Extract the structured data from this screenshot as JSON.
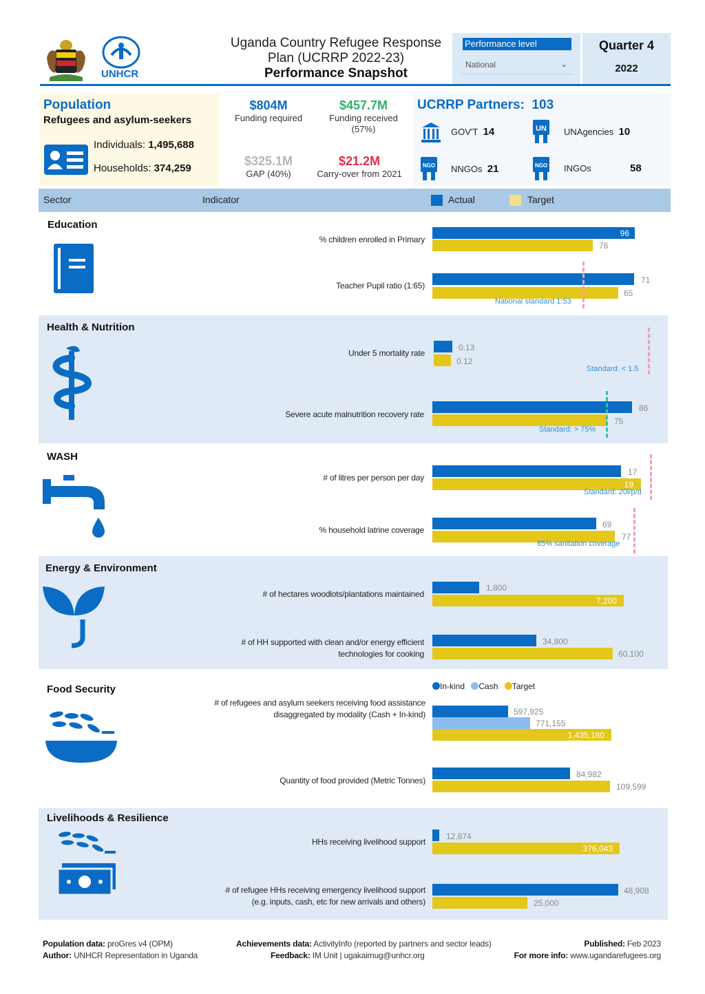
{
  "header": {
    "title_line1": "Uganda Country Refugee Response",
    "title_line2": "Plan (UCRRP 2022-23)",
    "subtitle": "Performance Snapshot",
    "logo_text": "UNHCR",
    "performance_label": "Performance level",
    "level_value": "National",
    "quarter": "Quarter 4",
    "year": "2022"
  },
  "population": {
    "title": "Population",
    "subtitle": "Refugees and asylum-seekers",
    "individuals_label": "Individuals:",
    "individuals_value": "1,495,688",
    "households_label": "Households:",
    "households_value": "374,259"
  },
  "funding": {
    "required_value": "$804M",
    "required_label": "Funding required",
    "received_value": "$457.7M",
    "received_label": "Funding received",
    "received_pct": "(57%)",
    "gap_value": "$325.1M",
    "gap_label": "GAP (40%)",
    "carry_value": "$21.2M",
    "carry_label": "Carry-over from 2021",
    "colors": {
      "required": "#0a6cc4",
      "received": "#2fb36a",
      "gap": "#b5b5b5",
      "carry": "#e0304a"
    }
  },
  "partners": {
    "title": "UCRRP Partners:",
    "total": "103",
    "items": [
      {
        "icon": "government-building-icon",
        "label": "GOV'T",
        "value": "14"
      },
      {
        "icon": "un-agency-icon",
        "label": "UNAgencies",
        "value": "10"
      },
      {
        "icon": "nngo-icon",
        "label": "NNGOs",
        "value": "21"
      },
      {
        "icon": "ingo-icon",
        "label": "INGOs",
        "value": "58"
      }
    ],
    "icon_texts": {
      "un": "UN",
      "nngo": "NGO",
      "ingo": "NGO"
    }
  },
  "table_header": {
    "sector": "Sector",
    "indicator": "Indicator",
    "actual": "Actual",
    "target": "Target"
  },
  "sections": {
    "education": {
      "title": "Education",
      "ind1": {
        "label": "% children enrolled in Primary",
        "actual": 96,
        "target": 76,
        "actual_text": "96",
        "target_text": "76"
      },
      "ind2": {
        "label": "Teacher Pupil ratio (1:65)",
        "actual": 71,
        "target": 65,
        "actual_text": "71",
        "target_text": "65",
        "standard": "National standard 1:53"
      }
    },
    "health": {
      "title": "Health & Nutrition",
      "ind1": {
        "label": "Under 5 mortality rate",
        "actual": 0.13,
        "target": 0.12,
        "actual_text": "0.13",
        "target_text": "0.12",
        "standard": "Standard: < 1.5"
      },
      "ind2": {
        "label": "Severe acute malnutrition recovery rate",
        "actual": 86,
        "target": 75,
        "actual_text": "86",
        "target_text": "75",
        "standard": "Standard: > 75%"
      }
    },
    "wash": {
      "title": "WASH",
      "ind1": {
        "label": "# of litres per person per day",
        "actual": 17,
        "target": 19,
        "actual_text": "17",
        "target_text": "19",
        "standard": "Standard: 20l/p/d"
      },
      "ind2": {
        "label": "% household latrine coverage",
        "actual": 69,
        "target": 77,
        "actual_text": "69",
        "target_text": "77",
        "standard": "85% sanitation coverage"
      }
    },
    "energy": {
      "title": "Energy & Environment",
      "ind1": {
        "label": "# of hectares woodlots/plantations maintained",
        "actual": 1800,
        "target": 7200,
        "actual_text": "1,800",
        "target_text": "7,200"
      },
      "ind2": {
        "label_line1": "# of HH supported with clean and/or energy efficient",
        "label_line2": "technologies for cooking",
        "actual": 34800,
        "target": 60100,
        "actual_text": "34,800",
        "target_text": "60,100"
      }
    },
    "food": {
      "title": "Food Security",
      "legend": {
        "inkind": "In-kind",
        "cash": "Cash",
        "target": "Target"
      },
      "ind1": {
        "label_line1": "# of refugees and asylum seekers receiving food assistance",
        "label_line2": "disaggregated by modality (Cash + In-kind)",
        "inkind": 597925,
        "cash": 771155,
        "target": 1435180,
        "inkind_text": "597,925",
        "cash_text": "771,155",
        "target_text": "1,435,180"
      },
      "ind2": {
        "label": "Quantity of food provided (Metric Tonnes)",
        "actual": 84982,
        "target": 109599,
        "actual_text": "84,982",
        "target_text": "109,599"
      }
    },
    "livelihoods": {
      "title": "Livelihoods & Resilience",
      "ind1": {
        "label": "HHs receiving livelihood support",
        "actual": 12874,
        "target": 376043,
        "actual_text": "12,874",
        "target_text": "376,043"
      },
      "ind2": {
        "label_line1": "# of refugee HHs receiving emergency livelihood support",
        "label_line2": "(e.g. inputs, cash, etc for new arrivals and others)",
        "actual": 48908,
        "target": 25000,
        "actual_text": "48,908",
        "target_text": "25,000"
      }
    }
  },
  "footer": {
    "pop_label": "Population data:",
    "pop_value": "proGres v4 (OPM)",
    "author_label": "Author:",
    "author_value": "UNHCR Representation in Uganda",
    "ach_label": "Achievements data:",
    "ach_value": "ActivityInfo (reported by partners and sector leads)",
    "feedback_label": "Feedback:",
    "feedback_value": "IM Unit | ugakaimug@unhcr.org",
    "pub_label": "Published:",
    "pub_value": "Feb 2023",
    "more_label": "For more info:",
    "more_value": "www.ugandarefugees.org"
  },
  "colors": {
    "actual": "#0a6cc4",
    "target": "#e3c719",
    "cash": "#8ebcf0",
    "header_band": "#a9c9e6",
    "section_band": "#dfeaf6"
  }
}
